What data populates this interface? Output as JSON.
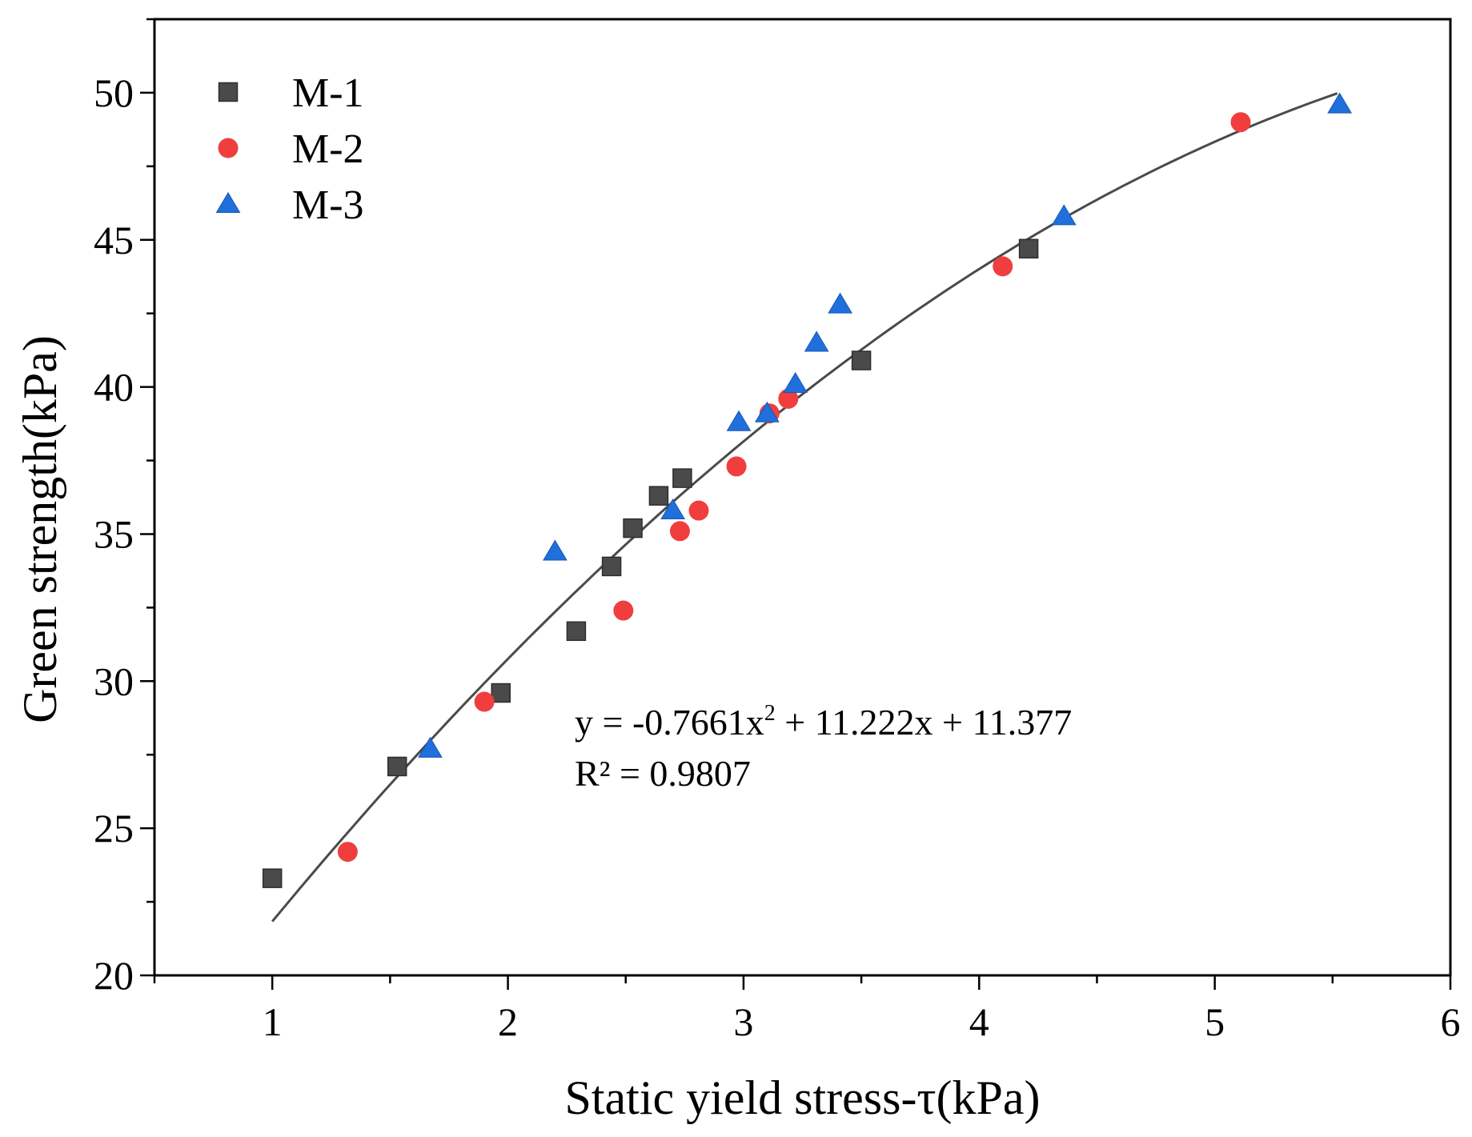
{
  "chart_data": {
    "type": "scatter",
    "title": "",
    "xlabel": "Static yield stress-τ(kPa)",
    "ylabel": "Green strength(kPa)",
    "xlim": [
      0.5,
      6
    ],
    "ylim": [
      20,
      52.5
    ],
    "xticks": [
      1,
      2,
      3,
      4,
      5,
      6
    ],
    "yticks": [
      20,
      25,
      30,
      35,
      40,
      45,
      50
    ],
    "xtick_labels": [
      "1",
      "2",
      "3",
      "4",
      "5",
      "6"
    ],
    "ytick_labels": [
      "20",
      "25",
      "30",
      "35",
      "40",
      "45",
      "50"
    ],
    "grid": false,
    "legend_position": "top-left",
    "series": [
      {
        "name": "M-1",
        "marker": "square",
        "color": "#4a4a4a",
        "x": [
          1.0,
          1.53,
          1.97,
          2.29,
          2.44,
          2.53,
          2.64,
          2.74,
          3.5,
          4.21
        ],
        "y": [
          23.3,
          27.1,
          29.6,
          31.7,
          33.9,
          35.2,
          36.3,
          36.9,
          40.9,
          44.7
        ]
      },
      {
        "name": "M-2",
        "marker": "circle",
        "color": "#f03e3e",
        "x": [
          1.32,
          1.9,
          2.49,
          2.73,
          2.81,
          2.97,
          3.11,
          3.19,
          4.1,
          5.11
        ],
        "y": [
          24.2,
          29.3,
          32.4,
          35.1,
          35.8,
          37.3,
          39.1,
          39.6,
          44.1,
          49.0
        ]
      },
      {
        "name": "M-3",
        "marker": "triangle",
        "color": "#1f6fdc",
        "x": [
          1.67,
          2.2,
          2.7,
          2.98,
          3.1,
          3.22,
          3.31,
          3.41,
          4.36,
          5.53
        ],
        "y": [
          27.7,
          34.4,
          35.8,
          38.8,
          39.1,
          40.1,
          41.5,
          42.8,
          45.8,
          49.6
        ]
      }
    ],
    "fit": {
      "a": -0.7661,
      "b": 11.222,
      "c": 11.377,
      "x_range": [
        1.0,
        5.52
      ],
      "color": "#4a4a4a",
      "equation_prefix": "y = -0.7661x",
      "equation_exp": "2",
      "equation_suffix": " + 11.222x + 11.377",
      "r2_label": "R² = 0.9807"
    }
  }
}
